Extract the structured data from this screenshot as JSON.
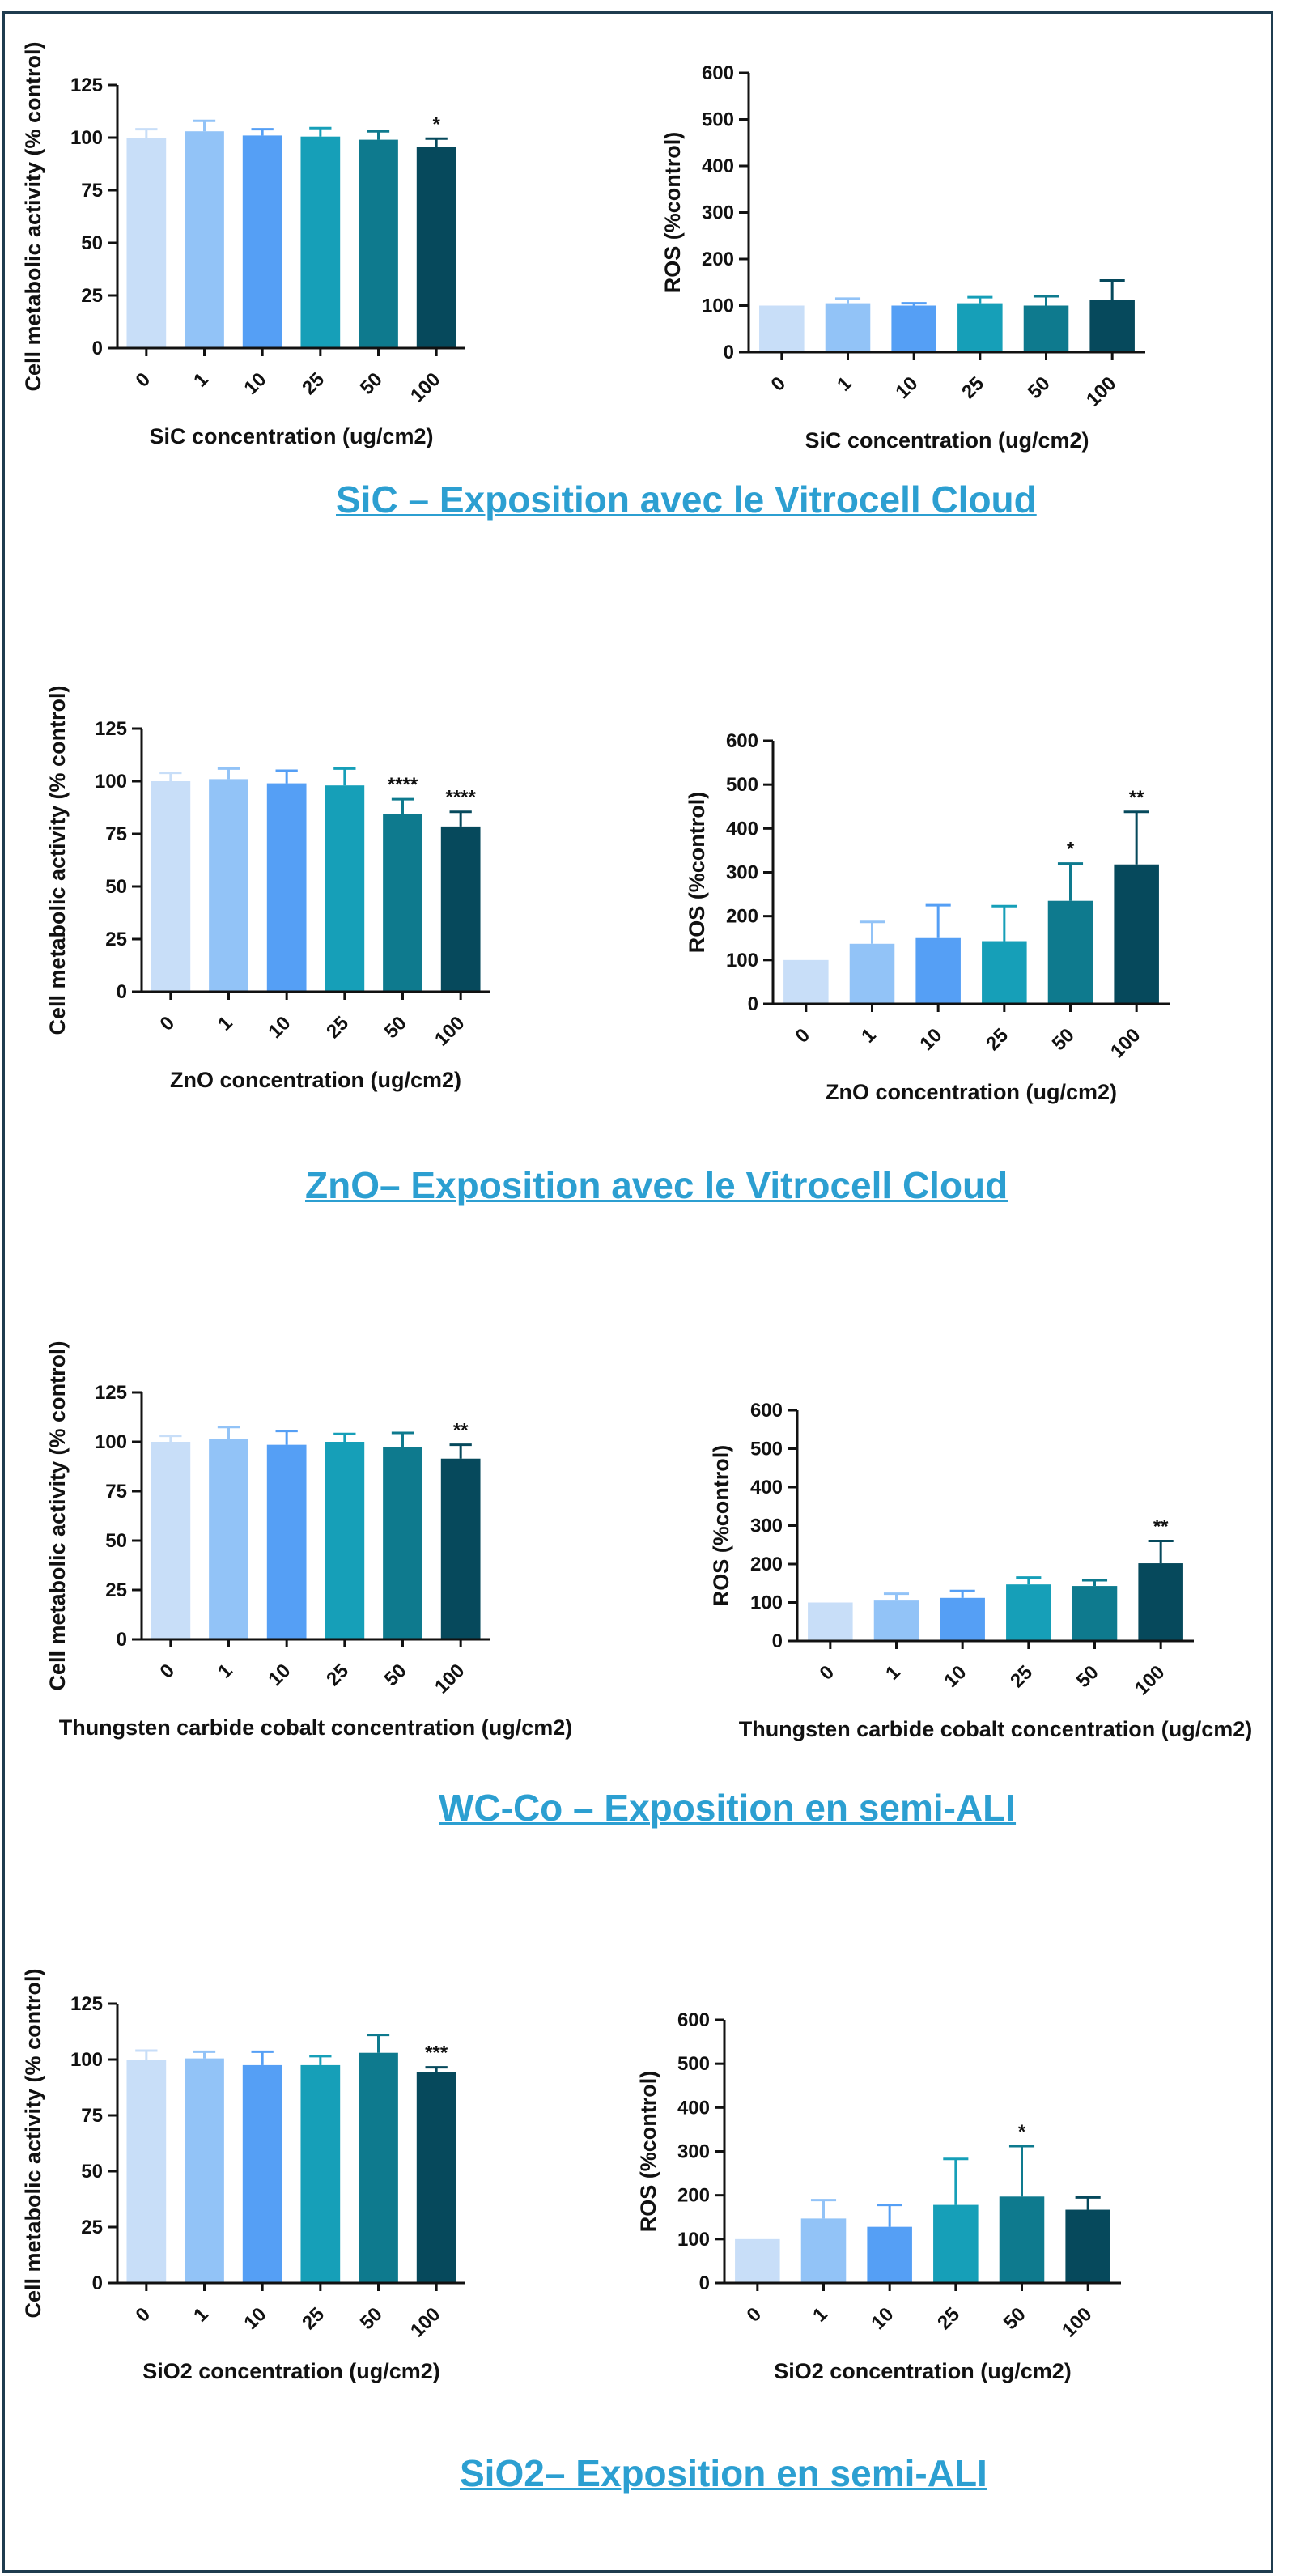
{
  "colors": {
    "bars": [
      "#c8def8",
      "#92c3f7",
      "#559ff5",
      "#169fb8",
      "#0e7a8e",
      "#06495c"
    ],
    "axis": "#111111",
    "title": "#2c9fd1",
    "frame": "#1f3c4f"
  },
  "sections": [
    {
      "title": "SiC – Exposition avec le Vitrocell Cloud"
    },
    {
      "title": "ZnO– Exposition avec le Vitrocell Cloud"
    },
    {
      "title": "WC-Co – Exposition en semi-ALI"
    },
    {
      "title": "SiO2– Exposition en semi-ALI"
    }
  ],
  "chart_data": [
    {
      "type": "bar",
      "ylabel": "Cell metabolic activity (% control)",
      "xlabel": "SiC concentration (ug/cm2)",
      "categories": [
        "0",
        "1",
        "10",
        "25",
        "50",
        "100"
      ],
      "values": [
        100,
        103,
        101,
        100.5,
        99,
        95.5
      ],
      "errors": [
        4,
        5,
        3,
        4,
        4,
        4
      ],
      "significance": [
        "",
        "",
        "",
        "",
        "",
        "*"
      ],
      "ylim": [
        0,
        125
      ],
      "yticks": [
        0,
        25,
        50,
        75,
        100,
        125
      ]
    },
    {
      "type": "bar",
      "ylabel": "ROS (%control)",
      "xlabel": "SiC concentration (ug/cm2)",
      "categories": [
        "0",
        "1",
        "10",
        "25",
        "50",
        "100"
      ],
      "values": [
        100,
        105,
        100,
        105,
        100,
        112
      ],
      "errors": [
        0,
        10,
        5,
        13,
        20,
        42
      ],
      "significance": [
        "",
        "",
        "",
        "",
        "",
        ""
      ],
      "ylim": [
        0,
        600
      ],
      "yticks": [
        0,
        100,
        200,
        300,
        400,
        500,
        600
      ]
    },
    {
      "type": "bar",
      "ylabel": "Cell metabolic activity (% control)",
      "xlabel": "ZnO concentration (ug/cm2)",
      "categories": [
        "0",
        "1",
        "10",
        "25",
        "50",
        "100"
      ],
      "values": [
        100,
        101,
        99,
        98,
        84.5,
        78.5
      ],
      "errors": [
        4,
        5,
        6,
        8,
        7,
        7
      ],
      "significance": [
        "",
        "",
        "",
        "",
        "****",
        "****"
      ],
      "ylim": [
        0,
        125
      ],
      "yticks": [
        0,
        25,
        50,
        75,
        100,
        125
      ]
    },
    {
      "type": "bar",
      "ylabel": "ROS (%control)",
      "xlabel": "ZnO concentration (ug/cm2)",
      "categories": [
        "0",
        "1",
        "10",
        "25",
        "50",
        "100"
      ],
      "values": [
        100,
        137,
        150,
        143,
        235,
        318
      ],
      "errors": [
        0,
        50,
        75,
        80,
        85,
        120
      ],
      "significance": [
        "",
        "",
        "",
        "",
        "*",
        "**"
      ],
      "ylim": [
        0,
        600
      ],
      "yticks": [
        0,
        100,
        200,
        300,
        400,
        500,
        600
      ]
    },
    {
      "type": "bar",
      "ylabel": "Cell metabolic activity (% control)",
      "xlabel": "Thungsten carbide cobalt concentration (ug/cm2)",
      "categories": [
        "0",
        "1",
        "10",
        "25",
        "50",
        "100"
      ],
      "values": [
        100,
        101.5,
        98.5,
        100,
        97.5,
        91.5
      ],
      "errors": [
        3,
        6,
        7,
        4,
        7,
        7
      ],
      "significance": [
        "",
        "",
        "",
        "",
        "",
        "**"
      ],
      "ylim": [
        0,
        125
      ],
      "yticks": [
        0,
        25,
        50,
        75,
        100,
        125
      ]
    },
    {
      "type": "bar",
      "ylabel": "ROS (%control)",
      "xlabel": "Thungsten carbide cobalt concentration (ug/cm2)",
      "categories": [
        "0",
        "1",
        "10",
        "25",
        "50",
        "100"
      ],
      "values": [
        100,
        105,
        112,
        147,
        143,
        202
      ],
      "errors": [
        0,
        18,
        18,
        18,
        15,
        58
      ],
      "significance": [
        "",
        "",
        "",
        "",
        "",
        "**"
      ],
      "ylim": [
        0,
        600
      ],
      "yticks": [
        0,
        100,
        200,
        300,
        400,
        500,
        600
      ]
    },
    {
      "type": "bar",
      "ylabel": "Cell metabolic activity (% control)",
      "xlabel": "SiO2 concentration (ug/cm2)",
      "categories": [
        "0",
        "1",
        "10",
        "25",
        "50",
        "100"
      ],
      "values": [
        100,
        100.5,
        97.5,
        97.5,
        103,
        94.5
      ],
      "errors": [
        4,
        3,
        6,
        4,
        8,
        2
      ],
      "significance": [
        "",
        "",
        "",
        "",
        "",
        "***"
      ],
      "ylim": [
        0,
        125
      ],
      "yticks": [
        0,
        25,
        50,
        75,
        100,
        125
      ]
    },
    {
      "type": "bar",
      "ylabel": "ROS (%control)",
      "xlabel": "SiO2 concentration (ug/cm2)",
      "categories": [
        "0",
        "1",
        "10",
        "25",
        "50",
        "100"
      ],
      "values": [
        100,
        147,
        128,
        178,
        197,
        167
      ],
      "errors": [
        0,
        42,
        50,
        105,
        115,
        28
      ],
      "significance": [
        "",
        "",
        "",
        "",
        "*",
        ""
      ],
      "ylim": [
        0,
        600
      ],
      "yticks": [
        0,
        100,
        200,
        300,
        400,
        500,
        600
      ]
    }
  ]
}
